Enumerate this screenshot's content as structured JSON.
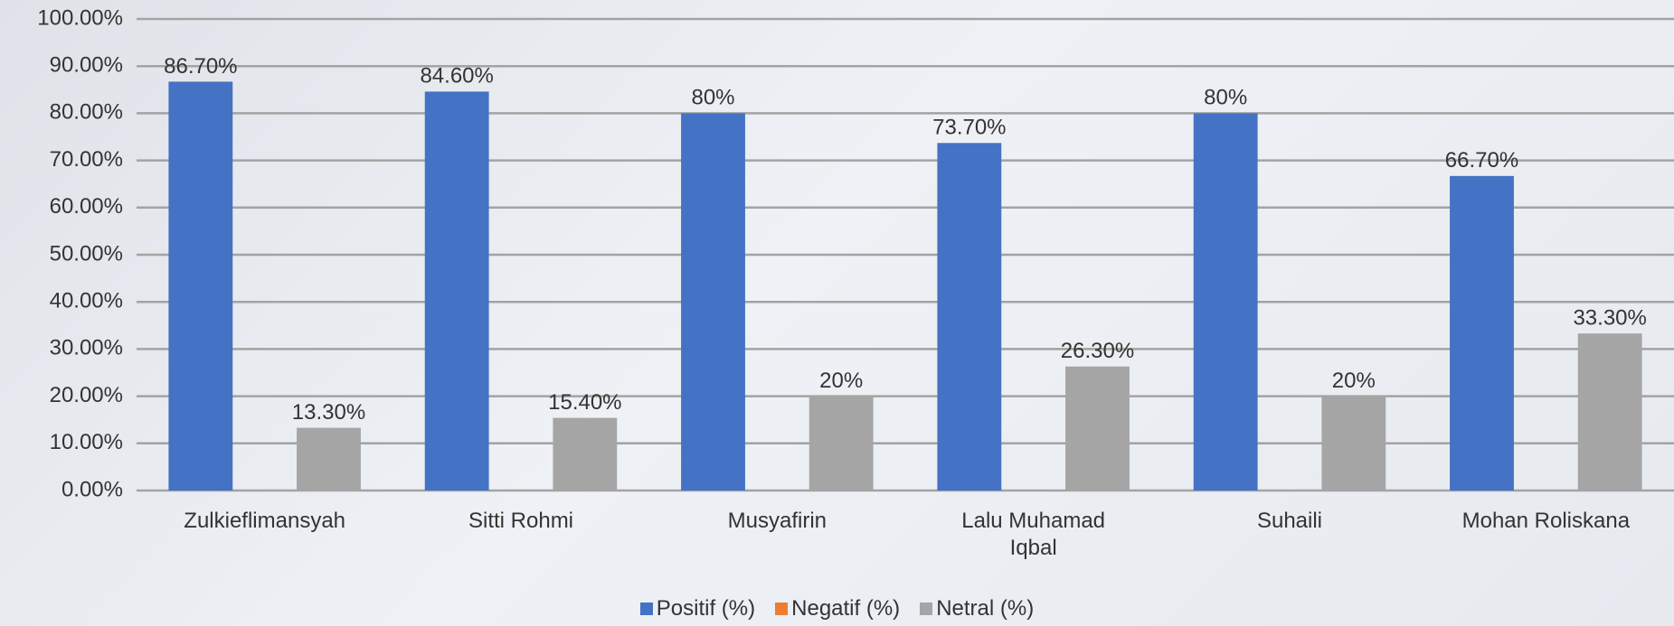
{
  "chart_data": {
    "type": "bar",
    "categories": [
      "Zulkieflimansyah",
      "Sitti Rohmi",
      "Musyafirin",
      "Lalu Muhamad Iqbal",
      "Suhaili",
      "Mohan Roliskana"
    ],
    "series": [
      {
        "name": "Positif (%)",
        "color": "#4472c4",
        "values": [
          86.7,
          84.6,
          80,
          73.7,
          80,
          66.7
        ],
        "value_labels": [
          "86.70%",
          "84.60%",
          "80%",
          "73.70%",
          "80%",
          "66.70%"
        ]
      },
      {
        "name": "Negatif (%)",
        "color": "#ed7d31",
        "values": [
          0,
          0,
          0,
          0,
          0,
          0
        ]
      },
      {
        "name": "Netral (%)",
        "color": "#a5a5a5",
        "values": [
          13.3,
          15.4,
          20,
          26.3,
          20,
          33.3
        ],
        "value_labels": [
          "13.30%",
          "15.40%",
          "20%",
          "26.30%",
          "20%",
          "33.30%"
        ]
      }
    ],
    "ylim": [
      0,
      100
    ],
    "yticks": [
      {
        "value": 0,
        "label": "0.00%"
      },
      {
        "value": 10,
        "label": "10.00%"
      },
      {
        "value": 20,
        "label": "20.00%"
      },
      {
        "value": 30,
        "label": "30.00%"
      },
      {
        "value": 40,
        "label": "40.00%"
      },
      {
        "value": 50,
        "label": "50.00%"
      },
      {
        "value": 60,
        "label": "60.00%"
      },
      {
        "value": 70,
        "label": "70.00%"
      },
      {
        "value": 80,
        "label": "80.00%"
      },
      {
        "value": 90,
        "label": "90.00%"
      },
      {
        "value": 100,
        "label": "100.00%"
      }
    ],
    "grid": true,
    "legend": "bottom"
  }
}
